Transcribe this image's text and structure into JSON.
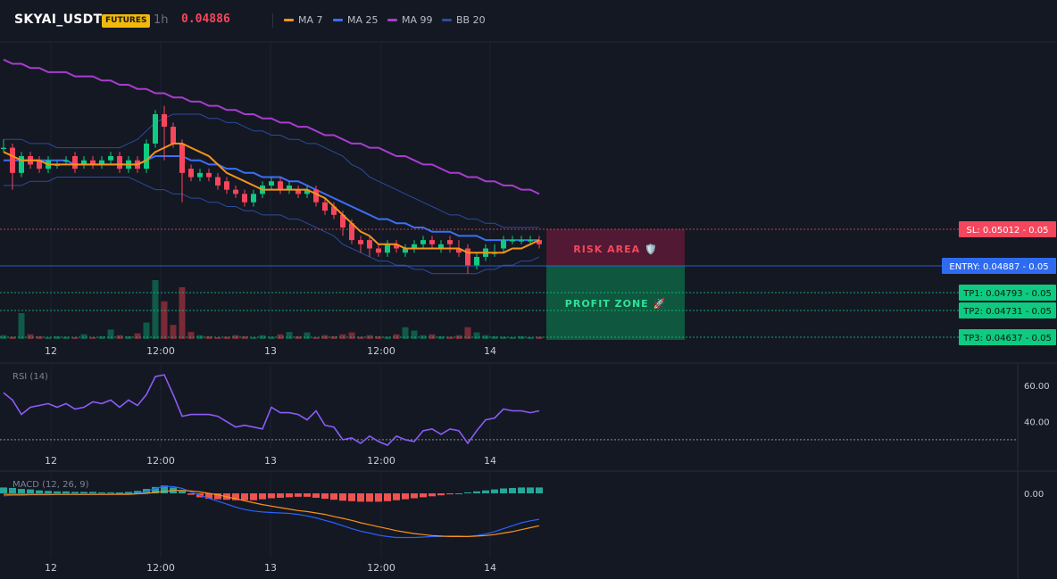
{
  "header": {
    "symbol": "SKYAI_USDT",
    "badge": "FUTURES",
    "timeframe": "1h",
    "price": "0.04886",
    "legend": [
      {
        "label": "MA 7",
        "color": "#f7931a"
      },
      {
        "label": "MA 25",
        "color": "#3b6ff5"
      },
      {
        "label": "MA 99",
        "color": "#a83ccf"
      },
      {
        "label": "BB 20",
        "color": "#2a4c9c"
      }
    ]
  },
  "colors": {
    "up": "#0ecb81",
    "down": "#f6465d",
    "rsi": "#8b5cf6",
    "macd": "#2962ff",
    "signal": "#f7931a",
    "ma7": "#f7931a",
    "ma25": "#3b6ff5",
    "ma99": "#a83ccf",
    "bb": "#2a4c9c"
  },
  "x_ticks": [
    "12",
    "12:00",
    "13",
    "12:00",
    "14"
  ],
  "zones": {
    "risk": "RISK AREA 🛡️",
    "profit": "PROFIT ZONE 🚀"
  },
  "levels": [
    {
      "label": "SL: 0.05012",
      "value": 0.05012,
      "suffix": "0.05",
      "color": "#f6465d",
      "kind": "sl"
    },
    {
      "label": "ENTRY: 0.04887",
      "value": 0.04887,
      "suffix": "0.05",
      "color": "#2f6bef",
      "kind": "entry"
    },
    {
      "label": "TP1: 0.04793",
      "value": 0.04793,
      "suffix": "0.05",
      "color": "#0ecb81",
      "kind": "tp"
    },
    {
      "label": "TP2: 0.04731",
      "value": 0.04731,
      "suffix": "0.05",
      "color": "#0ecb81",
      "kind": "tp"
    },
    {
      "label": "TP3: 0.04637",
      "value": 0.04637,
      "suffix": "0.05",
      "color": "#0ecb81",
      "kind": "tp"
    }
  ],
  "rsi": {
    "label": "RSI (14)",
    "ticks": [
      "60.00",
      "40.00"
    ]
  },
  "macd": {
    "label": "MACD (12, 26, 9)",
    "ticks": [
      "0.00"
    ]
  },
  "chart_data": {
    "type": "candlestick",
    "ylim": [
      0.0464,
      0.0535
    ],
    "price": {
      "open": [
        0.051,
        0.051,
        0.0504,
        0.0508,
        0.0507,
        0.0505,
        0.0506,
        0.0507,
        0.0508,
        0.0506,
        0.0507,
        0.0506,
        0.0507,
        0.0508,
        0.0505,
        0.0507,
        0.0505,
        0.0511,
        0.0518,
        0.0515,
        0.0511,
        0.0505,
        0.0503,
        0.0504,
        0.0503,
        0.0502,
        0.05,
        0.0499,
        0.0497,
        0.0499,
        0.0501,
        0.0502,
        0.05,
        0.05,
        0.0499,
        0.05,
        0.0497,
        0.0496,
        0.0494,
        0.0492,
        0.0488,
        0.0488,
        0.0486,
        0.0485,
        0.0487,
        0.0485,
        0.0486,
        0.0487,
        0.0488,
        0.0486,
        0.0488,
        0.0486,
        0.0486,
        0.0482,
        0.0484,
        0.0485,
        0.0486,
        0.0488,
        0.0488,
        0.0488,
        0.0488
      ],
      "close": [
        0.051,
        0.0504,
        0.0508,
        0.0506,
        0.0505,
        0.0507,
        0.0506,
        0.0507,
        0.0505,
        0.0507,
        0.0506,
        0.0507,
        0.0508,
        0.0505,
        0.0507,
        0.0505,
        0.0511,
        0.0518,
        0.0515,
        0.0511,
        0.0504,
        0.0503,
        0.0504,
        0.0503,
        0.0501,
        0.05,
        0.0499,
        0.0497,
        0.0499,
        0.0501,
        0.0502,
        0.05,
        0.0501,
        0.0499,
        0.05,
        0.0497,
        0.0495,
        0.0494,
        0.0491,
        0.0488,
        0.0487,
        0.0486,
        0.0485,
        0.0487,
        0.0486,
        0.0486,
        0.0487,
        0.0488,
        0.0487,
        0.0487,
        0.0487,
        0.0485,
        0.0482,
        0.0484,
        0.0486,
        0.0485,
        0.0488,
        0.0488,
        0.0488,
        0.0488,
        0.0487
      ],
      "high": [
        0.0512,
        0.0511,
        0.0509,
        0.0509,
        0.0508,
        0.0508,
        0.0507,
        0.0508,
        0.0509,
        0.0508,
        0.0508,
        0.0508,
        0.0509,
        0.0509,
        0.0508,
        0.0508,
        0.0512,
        0.0519,
        0.052,
        0.0516,
        0.0512,
        0.0506,
        0.0505,
        0.0505,
        0.0504,
        0.0503,
        0.0501,
        0.05,
        0.05,
        0.0502,
        0.0503,
        0.0503,
        0.0502,
        0.0501,
        0.0501,
        0.0501,
        0.0498,
        0.0497,
        0.0495,
        0.0493,
        0.0489,
        0.0489,
        0.0487,
        0.0488,
        0.0488,
        0.0487,
        0.0488,
        0.0489,
        0.0489,
        0.0488,
        0.0489,
        0.0488,
        0.0487,
        0.0485,
        0.0487,
        0.0487,
        0.0489,
        0.0489,
        0.0489,
        0.0489,
        0.0489
      ],
      "low": [
        0.0509,
        0.05,
        0.0503,
        0.0505,
        0.0504,
        0.0504,
        0.0505,
        0.0506,
        0.0504,
        0.0505,
        0.0505,
        0.0505,
        0.0506,
        0.0504,
        0.0504,
        0.0504,
        0.0504,
        0.051,
        0.0507,
        0.051,
        0.0497,
        0.0502,
        0.0502,
        0.0502,
        0.05,
        0.0499,
        0.0498,
        0.0496,
        0.0496,
        0.0498,
        0.05,
        0.0499,
        0.0499,
        0.0498,
        0.0498,
        0.0496,
        0.0494,
        0.0493,
        0.0489,
        0.0487,
        0.0485,
        0.0484,
        0.0484,
        0.0484,
        0.0485,
        0.0484,
        0.0485,
        0.0486,
        0.0486,
        0.0485,
        0.0485,
        0.0484,
        0.048,
        0.0481,
        0.0483,
        0.0484,
        0.0485,
        0.0487,
        0.0487,
        0.0487,
        0.0486
      ]
    },
    "ma7": [
      0.0509,
      0.0508,
      0.0507,
      0.0507,
      0.0507,
      0.0506,
      0.0506,
      0.0506,
      0.0506,
      0.0506,
      0.0506,
      0.0506,
      0.0506,
      0.0506,
      0.0506,
      0.0506,
      0.0507,
      0.0509,
      0.051,
      0.0511,
      0.0511,
      0.051,
      0.0509,
      0.0508,
      0.0506,
      0.0504,
      0.0503,
      0.0502,
      0.0501,
      0.05,
      0.05,
      0.05,
      0.05,
      0.05,
      0.05,
      0.0499,
      0.0498,
      0.0496,
      0.0494,
      0.0492,
      0.049,
      0.0489,
      0.0487,
      0.0487,
      0.0487,
      0.0486,
      0.0486,
      0.0486,
      0.0486,
      0.0486,
      0.0486,
      0.0486,
      0.0485,
      0.0485,
      0.0485,
      0.0485,
      0.0485,
      0.0486,
      0.0486,
      0.0487,
      0.0488
    ],
    "ma25": [
      0.0507,
      0.0507,
      0.0507,
      0.0507,
      0.0507,
      0.0507,
      0.0507,
      0.0507,
      0.0506,
      0.0506,
      0.0506,
      0.0506,
      0.0506,
      0.0506,
      0.0506,
      0.0506,
      0.0507,
      0.0508,
      0.0508,
      0.0508,
      0.0508,
      0.0507,
      0.0507,
      0.0506,
      0.0506,
      0.0505,
      0.0505,
      0.0504,
      0.0504,
      0.0503,
      0.0503,
      0.0503,
      0.0502,
      0.0502,
      0.0501,
      0.05,
      0.0499,
      0.0498,
      0.0497,
      0.0496,
      0.0495,
      0.0494,
      0.0493,
      0.0493,
      0.0492,
      0.0492,
      0.0491,
      0.0491,
      0.049,
      0.049,
      0.049,
      0.0489,
      0.0489,
      0.0489,
      0.0488,
      0.0488,
      0.0488,
      0.0488,
      0.0488,
      0.0488,
      0.0488
    ],
    "ma99": [
      0.0531,
      0.053,
      0.053,
      0.0529,
      0.0529,
      0.0528,
      0.0528,
      0.0528,
      0.0527,
      0.0527,
      0.0527,
      0.0526,
      0.0526,
      0.0525,
      0.0525,
      0.0524,
      0.0524,
      0.0523,
      0.0523,
      0.0522,
      0.0522,
      0.0521,
      0.0521,
      0.052,
      0.052,
      0.0519,
      0.0519,
      0.0518,
      0.0518,
      0.0517,
      0.0517,
      0.0516,
      0.0516,
      0.0515,
      0.0515,
      0.0514,
      0.0513,
      0.0513,
      0.0512,
      0.0511,
      0.0511,
      0.051,
      0.051,
      0.0509,
      0.0508,
      0.0508,
      0.0507,
      0.0506,
      0.0506,
      0.0505,
      0.0504,
      0.0504,
      0.0503,
      0.0503,
      0.0502,
      0.0502,
      0.0501,
      0.0501,
      0.05,
      0.05,
      0.0499
    ],
    "bb_upper": [
      0.0512,
      0.0512,
      0.0512,
      0.0511,
      0.0511,
      0.0511,
      0.051,
      0.051,
      0.051,
      0.051,
      0.051,
      0.051,
      0.051,
      0.051,
      0.0511,
      0.0512,
      0.0514,
      0.0516,
      0.0517,
      0.0518,
      0.0518,
      0.0518,
      0.0518,
      0.0517,
      0.0517,
      0.0516,
      0.0516,
      0.0515,
      0.0514,
      0.0514,
      0.0513,
      0.0513,
      0.0512,
      0.0512,
      0.0511,
      0.0511,
      0.051,
      0.0509,
      0.0508,
      0.0506,
      0.0505,
      0.0503,
      0.0502,
      0.0501,
      0.05,
      0.0499,
      0.0498,
      0.0497,
      0.0496,
      0.0495,
      0.0494,
      0.0494,
      0.0493,
      0.0493,
      0.0492,
      0.0492,
      0.0491,
      0.0491,
      0.0491,
      0.0491,
      0.0491
    ],
    "bb_lower": [
      0.0501,
      0.0501,
      0.0501,
      0.0502,
      0.0502,
      0.0502,
      0.0503,
      0.0503,
      0.0503,
      0.0503,
      0.0503,
      0.0503,
      0.0503,
      0.0503,
      0.0503,
      0.0502,
      0.0501,
      0.05,
      0.05,
      0.0499,
      0.0499,
      0.0498,
      0.0498,
      0.0497,
      0.0497,
      0.0496,
      0.0496,
      0.0495,
      0.0495,
      0.0494,
      0.0494,
      0.0494,
      0.0493,
      0.0493,
      0.0492,
      0.0491,
      0.049,
      0.0489,
      0.0487,
      0.0486,
      0.0485,
      0.0484,
      0.0483,
      0.0483,
      0.0482,
      0.0482,
      0.0481,
      0.0481,
      0.048,
      0.048,
      0.048,
      0.048,
      0.048,
      0.048,
      0.0481,
      0.0481,
      0.0482,
      0.0482,
      0.0483,
      0.0483,
      0.0484
    ],
    "volume": [
      8,
      5,
      55,
      10,
      6,
      4,
      6,
      5,
      4,
      10,
      4,
      6,
      20,
      8,
      6,
      12,
      35,
      125,
      80,
      30,
      110,
      15,
      8,
      6,
      4,
      5,
      8,
      6,
      4,
      8,
      5,
      10,
      15,
      6,
      14,
      4,
      8,
      6,
      10,
      14,
      5,
      8,
      6,
      5,
      10,
      25,
      18,
      8,
      10,
      6,
      5,
      8,
      25,
      14,
      8,
      6,
      5,
      4,
      6,
      4,
      5
    ],
    "rsi": [
      56,
      52,
      44,
      48,
      49,
      50,
      48,
      50,
      47,
      48,
      51,
      50,
      52,
      48,
      52,
      49,
      55,
      65,
      66,
      55,
      43,
      44,
      44,
      44,
      43,
      40,
      37,
      38,
      37,
      36,
      48,
      45,
      45,
      44,
      41,
      46,
      38,
      37,
      30,
      31,
      28,
      32,
      29,
      27,
      32,
      30,
      29,
      35,
      36,
      33,
      36,
      35,
      28,
      35,
      41,
      42,
      47,
      46,
      46,
      45,
      46
    ],
    "rsi_line": 30,
    "rsi_ylim": [
      25,
      70
    ],
    "macd": {
      "hist": [
        0.00012,
        0.00011,
        9e-05,
        8e-05,
        6e-05,
        5e-05,
        4e-05,
        4e-05,
        3e-05,
        3e-05,
        3e-05,
        2e-05,
        2e-05,
        2e-05,
        3e-05,
        5e-05,
        9e-05,
        0.00013,
        0.00016,
        0.00012,
        5e-05,
        -3e-05,
        -8e-05,
        -0.00011,
        -0.00012,
        -0.00013,
        -0.00014,
        -0.00014,
        -0.00014,
        -0.00012,
        -0.0001,
        -9e-05,
        -8e-05,
        -7e-05,
        -7e-05,
        -9e-05,
        -0.00011,
        -0.00013,
        -0.00015,
        -0.00016,
        -0.00017,
        -0.00017,
        -0.00017,
        -0.00016,
        -0.00014,
        -0.00012,
        -0.0001,
        -8e-05,
        -6e-05,
        -4e-05,
        -2e-05,
        0.0,
        2e-05,
        4e-05,
        6e-05,
        8e-05,
        0.0001,
        0.00011,
        0.00012,
        0.00012,
        0.00012
      ],
      "macd": [
        -5e-05,
        -4e-05,
        -4e-05,
        -3e-05,
        -3e-05,
        -3e-05,
        -2e-05,
        -2e-05,
        -2e-05,
        -2e-05,
        -2e-05,
        -2e-05,
        -2e-05,
        -1e-05,
        -1e-05,
        0.0,
        4e-05,
        0.0001,
        0.00014,
        0.00014,
        0.0001,
        3e-05,
        -4e-05,
        -0.0001,
        -0.00016,
        -0.00022,
        -0.00028,
        -0.00033,
        -0.00036,
        -0.00038,
        -0.00039,
        -0.0004,
        -0.00041,
        -0.00043,
        -0.00046,
        -0.0005,
        -0.00055,
        -0.0006,
        -0.00066,
        -0.00072,
        -0.00077,
        -0.00081,
        -0.00085,
        -0.00088,
        -0.0009,
        -0.0009,
        -0.0009,
        -0.00089,
        -0.00088,
        -0.00088,
        -0.00087,
        -0.00087,
        -0.00088,
        -0.00086,
        -0.00083,
        -0.00078,
        -0.00072,
        -0.00066,
        -0.0006,
        -0.00056,
        -0.00053
      ],
      "signal": [
        -2e-05,
        -2e-05,
        -2e-05,
        -2e-05,
        -2e-05,
        -2e-05,
        -2e-05,
        -2e-05,
        -2e-05,
        -2e-05,
        -2e-05,
        -2e-05,
        -2e-05,
        -2e-05,
        -2e-05,
        -1e-05,
        0.0,
        2e-05,
        4e-05,
        6e-05,
        6e-05,
        5e-05,
        3e-05,
        0.0,
        -3e-05,
        -7e-05,
        -0.00011,
        -0.00015,
        -0.00019,
        -0.00023,
        -0.00026,
        -0.00029,
        -0.00032,
        -0.00035,
        -0.00037,
        -0.0004,
        -0.00043,
        -0.00047,
        -0.00051,
        -0.00055,
        -0.0006,
        -0.00064,
        -0.00068,
        -0.00072,
        -0.00076,
        -0.00079,
        -0.00082,
        -0.00084,
        -0.00086,
        -0.00087,
        -0.00088,
        -0.00088,
        -0.00088,
        -0.00087,
        -0.00086,
        -0.00084,
        -0.00081,
        -0.00078,
        -0.00074,
        -0.0007,
        -0.00066
      ]
    }
  }
}
